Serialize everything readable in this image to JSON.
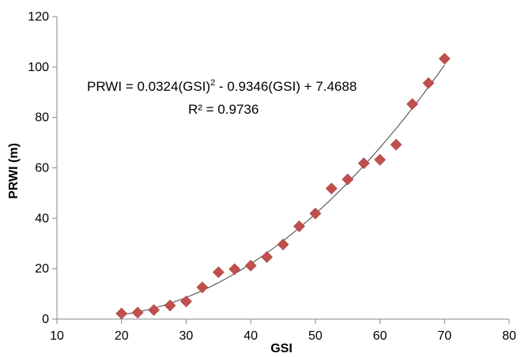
{
  "chart_data": {
    "type": "scatter",
    "title": "",
    "xlabel": "GSI",
    "ylabel": "PRWI (m)",
    "xlim": [
      10,
      80
    ],
    "ylim": [
      0,
      120
    ],
    "x_ticks": [
      10,
      20,
      30,
      40,
      50,
      60,
      70,
      80
    ],
    "y_ticks": [
      0,
      20,
      40,
      60,
      80,
      100,
      120
    ],
    "x_tick_labels": [
      "10",
      "20",
      "30",
      "40",
      "50",
      "60",
      "70",
      "80"
    ],
    "y_tick_labels": [
      "0",
      "20",
      "40",
      "60",
      "80",
      "100",
      "120"
    ],
    "grid": false,
    "legend": "none",
    "marker": "diamond",
    "marker_color": "#C0504D",
    "trendline_color": "#404040",
    "series": [
      {
        "x": [
          20,
          22.5,
          25,
          27.5,
          30,
          32.5,
          35,
          37.5,
          40,
          42.5,
          45,
          47.5,
          50,
          52.5,
          55,
          57.5,
          60,
          62.5,
          65,
          67.5,
          70
        ],
        "y": [
          2.2,
          2.6,
          3.6,
          5.4,
          7,
          12.6,
          18.6,
          19.8,
          21.2,
          24.6,
          29.6,
          36.8,
          41.9,
          51.8,
          55.4,
          61.8,
          63.2,
          69.2,
          85.3,
          93.6,
          103.3
        ]
      }
    ],
    "trendline": {
      "type": "polynomial",
      "coefficients": [
        0.0324,
        -0.9346,
        7.4688
      ],
      "x_range": [
        20,
        70
      ]
    },
    "annotations": [
      {
        "parts": [
          {
            "text": "PRWI = 0.0324(GSI)"
          },
          {
            "text": "2",
            "superscript": true
          },
          {
            "text": " - 0.9346(GSI) + 7.4688"
          }
        ]
      },
      {
        "parts": [
          {
            "text": "R² = 0.9736"
          }
        ]
      }
    ]
  }
}
